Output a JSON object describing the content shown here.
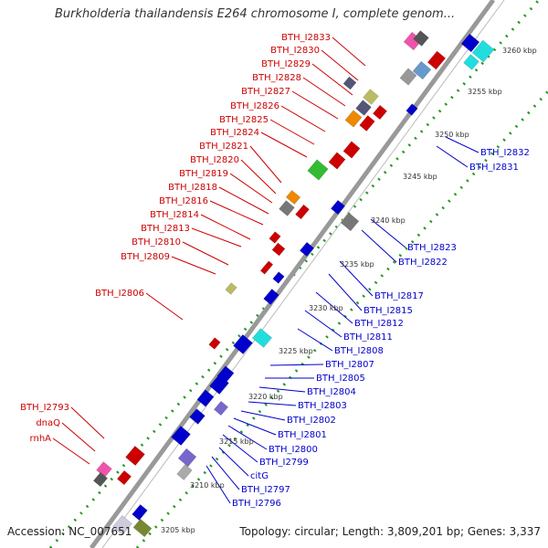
{
  "title": "Burkholderia thailandensis E264 chromosome I, complete genom...",
  "footer": {
    "accession": "Accession: NC_007651",
    "topology": "Topology: circular; Length: 3,809,201 bp; Genes: 3,337"
  },
  "colors": {
    "forward": "#cc0000",
    "reverse": "#0000cc",
    "backbone": "#999999",
    "ticks": "#229922"
  },
  "kbp_ticks": [
    "3205 kbp",
    "3210 kbp",
    "3215 kbp",
    "3220 kbp",
    "3225 kbp",
    "3230 kbp",
    "3235 kbp",
    "3240 kbp",
    "3245 kbp",
    "3250 kbp",
    "3255 kbp",
    "3260 kbp"
  ],
  "left_genes": [
    "BTH_I2833",
    "BTH_I2830",
    "BTH_I2829",
    "BTH_I2828",
    "BTH_I2827",
    "BTH_I2826",
    "BTH_I2825",
    "BTH_I2824",
    "BTH_I2821",
    "BTH_I2820",
    "BTH_I2819",
    "BTH_I2818",
    "BTH_I2816",
    "BTH_I2814",
    "BTH_I2813",
    "BTH_I2810",
    "BTH_I2809",
    "BTH_I2806",
    "BTH_I2793",
    "dnaQ",
    "rnhA"
  ],
  "right_genes": [
    "BTH_I2832",
    "BTH_I2831",
    "BTH_I2823",
    "BTH_I2822",
    "BTH_I2817",
    "BTH_I2815",
    "BTH_I2812",
    "BTH_I2811",
    "BTH_I2808",
    "BTH_I2807",
    "BTH_I2805",
    "BTH_I2804",
    "BTH_I2803",
    "BTH_I2802",
    "BTH_I2801",
    "BTH_I2800",
    "BTH_I2799",
    "citG",
    "BTH_I2797",
    "BTH_I2796"
  ]
}
